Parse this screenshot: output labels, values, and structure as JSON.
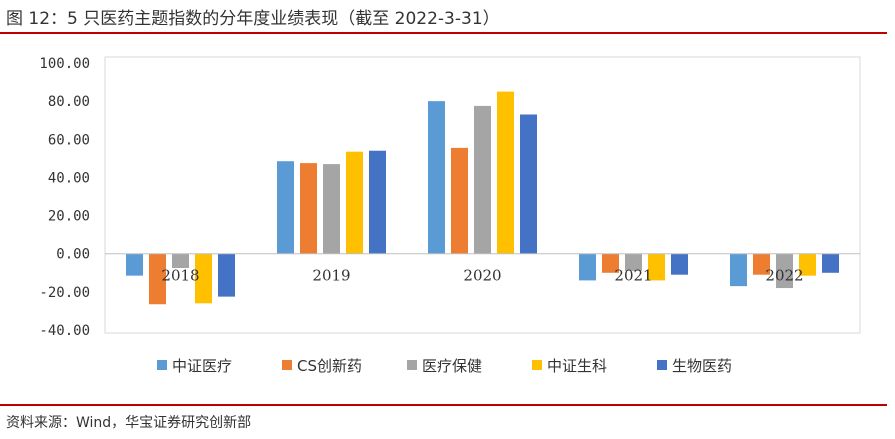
{
  "header": {
    "title": "图 12：5 只医药主题指数的分年度业绩表现（截至 2022-3-31）"
  },
  "footer": {
    "source": "资料来源：Wind，华宝证券研究创新部"
  },
  "chart_data": {
    "type": "bar",
    "title": "",
    "xlabel": "",
    "ylabel": "",
    "ylim": [
      -40,
      100
    ],
    "yticks": [
      "100.00",
      "80.00",
      "60.00",
      "40.00",
      "20.00",
      "0.00",
      "-20.00",
      "-40.00"
    ],
    "ytick_values": [
      100,
      80,
      60,
      40,
      20,
      0,
      -20,
      -40
    ],
    "grid": false,
    "legend_position": "bottom",
    "categories": [
      "2018",
      "2019",
      "2020",
      "2021",
      "2022"
    ],
    "series": [
      {
        "name": "中证医疗",
        "color": "#5b9bd5",
        "values": [
          -11.5,
          48.5,
          80.0,
          -14.0,
          -17.0
        ]
      },
      {
        "name": "CS创新药",
        "color": "#ed7d31",
        "values": [
          -26.5,
          47.5,
          55.5,
          -10.0,
          -11.0
        ]
      },
      {
        "name": "医疗保健",
        "color": "#a5a5a5",
        "values": [
          -7.5,
          47.0,
          77.5,
          -9.0,
          -18.0
        ]
      },
      {
        "name": "中证生科",
        "color": "#ffc000",
        "values": [
          -26.0,
          53.5,
          85.0,
          -14.0,
          -11.5
        ]
      },
      {
        "name": "生物医药",
        "color": "#4472c4",
        "values": [
          -22.5,
          54.0,
          73.0,
          -11.0,
          -10.0
        ]
      }
    ]
  }
}
